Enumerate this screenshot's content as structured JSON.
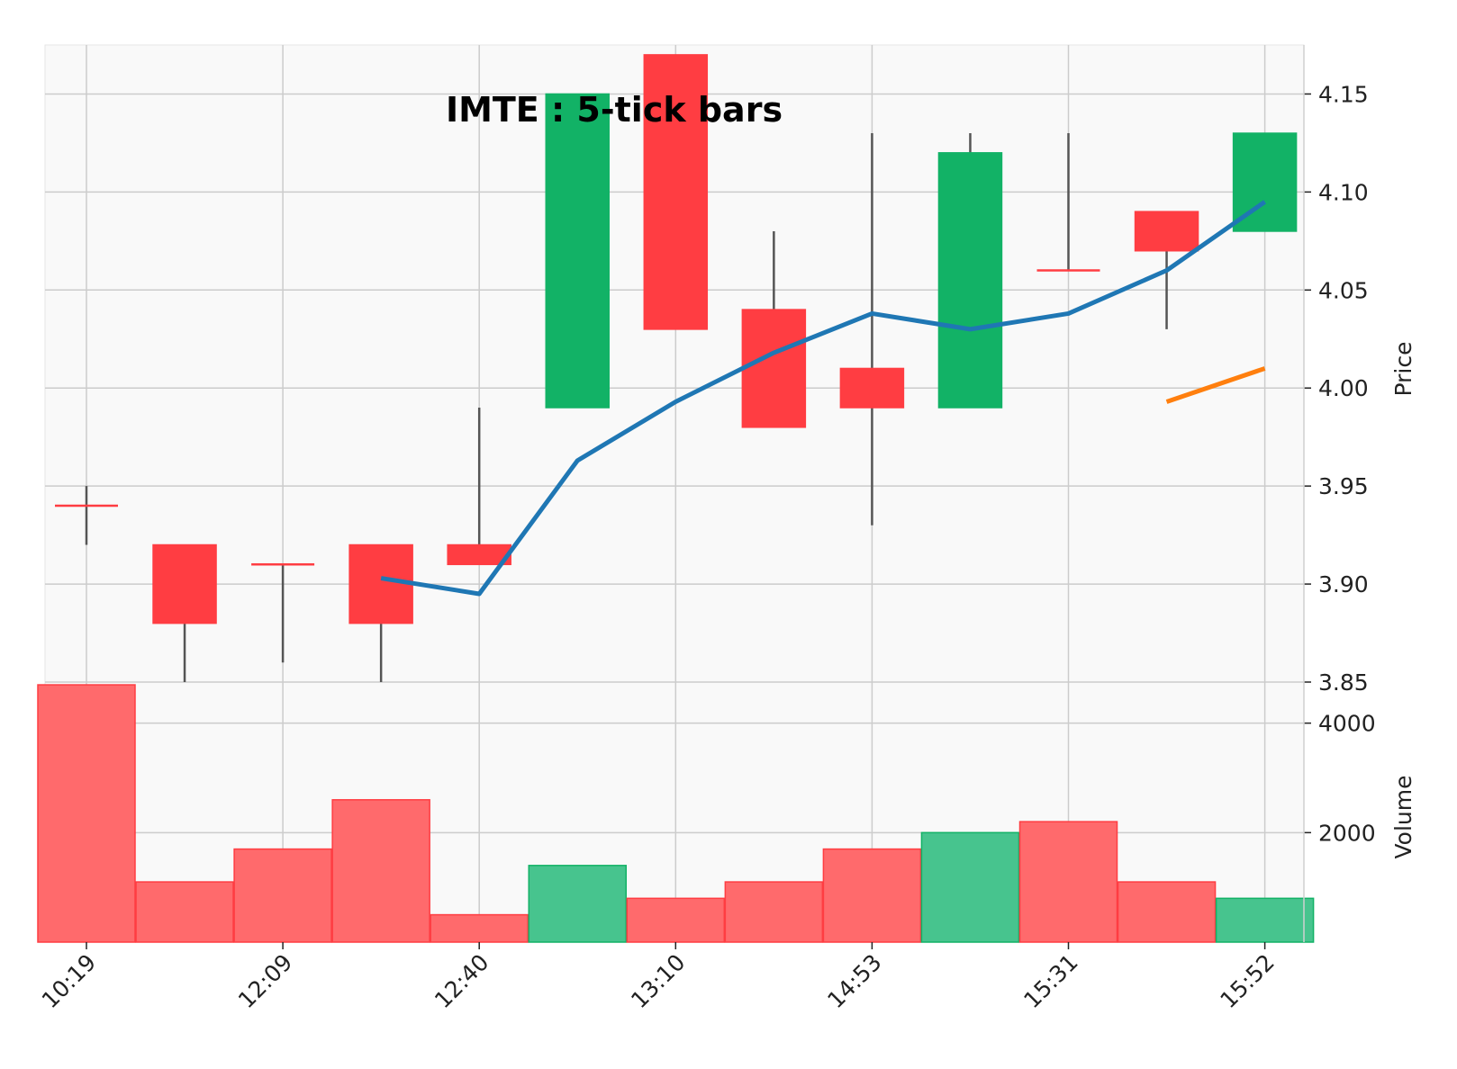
{
  "chart_data": {
    "type": "candlestick",
    "title": "IMTE : 5-tick bars",
    "x_tick_labels": [
      "10:19",
      "12:09",
      "12:40",
      "13:10",
      "14:53",
      "15:31",
      "15:52"
    ],
    "x_tick_bar_index": [
      0,
      2,
      4,
      6,
      8,
      10,
      12
    ],
    "price_axis": {
      "label": "Price",
      "ylim": [
        3.85,
        4.175
      ],
      "ticks": [
        3.85,
        3.9,
        3.95,
        4.0,
        4.05,
        4.1,
        4.15
      ],
      "tick_labels": [
        "3.85",
        "3.90",
        "3.95",
        "4.00",
        "4.05",
        "4.10",
        "4.15"
      ]
    },
    "volume_axis": {
      "label": "Volume",
      "ylim": [
        0,
        4750
      ],
      "ticks": [
        2000,
        4000
      ],
      "tick_labels": [
        "2000",
        "4000"
      ]
    },
    "ohlc": [
      {
        "open": 3.94,
        "high": 3.95,
        "low": 3.92,
        "close": 3.94,
        "volume": 4700
      },
      {
        "open": 3.92,
        "high": 3.92,
        "low": 3.85,
        "close": 3.88,
        "volume": 1100
      },
      {
        "open": 3.91,
        "high": 3.91,
        "low": 3.86,
        "close": 3.91,
        "volume": 1700
      },
      {
        "open": 3.92,
        "high": 3.92,
        "low": 3.85,
        "close": 3.88,
        "volume": 2600
      },
      {
        "open": 3.92,
        "high": 3.99,
        "low": 3.91,
        "close": 3.91,
        "volume": 500
      },
      {
        "open": 3.99,
        "high": 4.15,
        "low": 3.99,
        "close": 4.15,
        "volume": 1400
      },
      {
        "open": 4.17,
        "high": 4.17,
        "low": 4.03,
        "close": 4.03,
        "volume": 800
      },
      {
        "open": 4.04,
        "high": 4.08,
        "low": 3.98,
        "close": 3.98,
        "volume": 1100
      },
      {
        "open": 4.01,
        "high": 4.13,
        "low": 3.93,
        "close": 3.99,
        "volume": 1700
      },
      {
        "open": 3.99,
        "high": 4.13,
        "low": 3.99,
        "close": 4.12,
        "volume": 2000
      },
      {
        "open": 4.06,
        "high": 4.13,
        "low": 4.06,
        "close": 4.06,
        "volume": 2200
      },
      {
        "open": 4.09,
        "high": 4.09,
        "low": 4.03,
        "close": 4.07,
        "volume": 1100
      },
      {
        "open": 4.08,
        "high": 4.13,
        "low": 4.08,
        "close": 4.13,
        "volume": 800
      }
    ],
    "moving_averages": [
      {
        "color": "#1f77b4",
        "start_index": 3,
        "values": [
          3.903,
          3.895,
          3.963,
          3.993,
          4.018,
          4.038,
          4.03,
          4.038,
          4.06,
          4.095
        ]
      },
      {
        "color": "#ff7f0e",
        "start_index": 11,
        "values": [
          3.993,
          4.01
        ]
      }
    ],
    "colors": {
      "up": "#12b266",
      "down": "#ff3d42",
      "up_volume": "#47c48e",
      "down_volume": "#ff6a6c",
      "wick": "#555555",
      "panel_bg": "#f9f9f9",
      "grid": "#cccccc"
    }
  }
}
